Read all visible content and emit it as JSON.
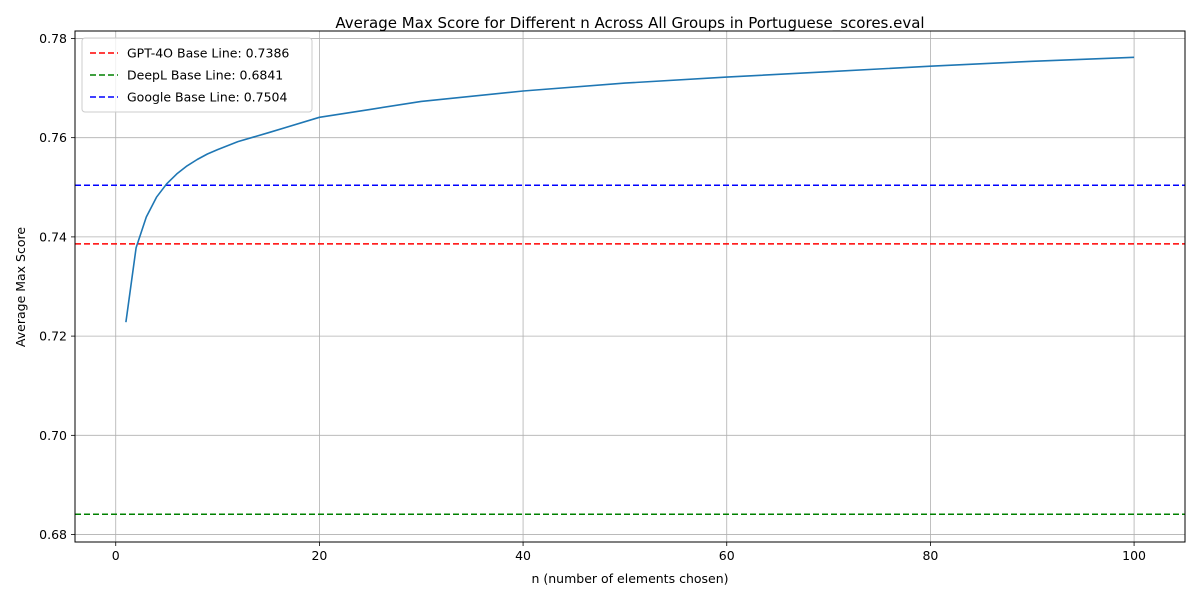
{
  "chart_data": {
    "type": "line",
    "title": "Average Max Score for Different n Across All Groups in Portuguese_scores.eval",
    "xlabel": "n (number of elements chosen)",
    "ylabel": "Average Max Score",
    "xlim": [
      -4,
      105
    ],
    "ylim": [
      0.6785,
      0.7815
    ],
    "xticks": [
      0,
      20,
      40,
      60,
      80,
      100
    ],
    "yticks": [
      0.68,
      0.7,
      0.72,
      0.74,
      0.76,
      0.78
    ],
    "xtick_labels": [
      "0",
      "20",
      "40",
      "60",
      "80",
      "100"
    ],
    "ytick_labels": [
      "0.68",
      "0.70",
      "0.72",
      "0.74",
      "0.76",
      "0.78"
    ],
    "grid": true,
    "legend_position": "top-left",
    "series": [
      {
        "color": "#1f77b4",
        "style": "solid",
        "x": [
          1,
          2,
          3,
          4,
          5,
          6,
          7,
          8,
          9,
          10,
          12,
          15,
          20,
          25,
          30,
          40,
          50,
          60,
          70,
          80,
          90,
          100
        ],
        "y": [
          0.7228,
          0.7378,
          0.744,
          0.748,
          0.7507,
          0.7527,
          0.7543,
          0.7556,
          0.7567,
          0.7576,
          0.7592,
          0.761,
          0.7641,
          0.7657,
          0.7673,
          0.7694,
          0.771,
          0.7722,
          0.7733,
          0.7744,
          0.7754,
          0.7762
        ]
      }
    ],
    "baselines": [
      {
        "label": "GPT-4O Base Line: 0.7386",
        "value": 0.7386,
        "color": "#ff0000"
      },
      {
        "label": "DeepL Base Line: 0.6841",
        "value": 0.6841,
        "color": "#008000"
      },
      {
        "label": "Google Base Line: 0.7504",
        "value": 0.7504,
        "color": "#0000ff"
      }
    ]
  }
}
